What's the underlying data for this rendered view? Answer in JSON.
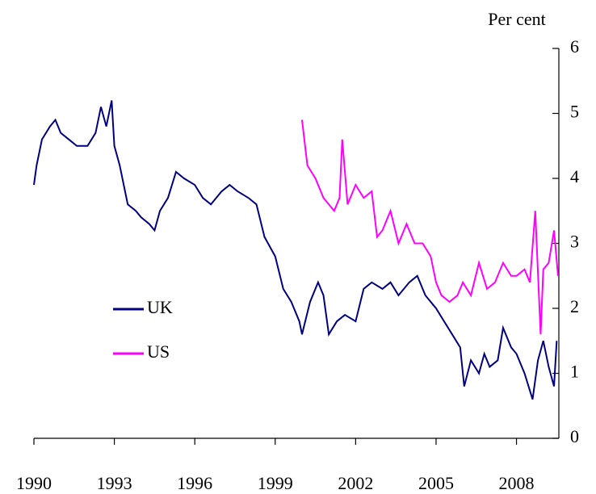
{
  "chart_data": {
    "type": "line",
    "y_label": "Per cent",
    "xlim": [
      1990,
      2009.58
    ],
    "xticks": [
      1990,
      1993,
      1996,
      1999,
      2002,
      2005,
      2008
    ],
    "ylim": [
      0,
      6
    ],
    "yticks": [
      0,
      1,
      2,
      3,
      4,
      5,
      6
    ],
    "y_axis_side": "right",
    "grid": false,
    "legend": "center-left",
    "series": [
      {
        "name": "UK",
        "color": "#000080",
        "x": [
          1990.0,
          1990.1,
          1990.3,
          1990.6,
          1990.8,
          1991.0,
          1991.3,
          1991.6,
          1992.0,
          1992.3,
          1992.5,
          1992.7,
          1992.9,
          1993.0,
          1993.2,
          1993.5,
          1993.8,
          1994.0,
          1994.3,
          1994.5,
          1994.7,
          1995.0,
          1995.3,
          1995.6,
          1996.0,
          1996.3,
          1996.6,
          1997.0,
          1997.3,
          1997.6,
          1998.0,
          1998.3,
          1998.6,
          1999.0,
          1999.3,
          1999.6,
          1999.9,
          2000.0,
          2000.3,
          2000.6,
          2000.8,
          2001.0,
          2001.3,
          2001.6,
          2002.0,
          2002.3,
          2002.6,
          2003.0,
          2003.3,
          2003.6,
          2004.0,
          2004.3,
          2004.6,
          2005.0,
          2005.3,
          2005.6,
          2005.9,
          2006.05,
          2006.3,
          2006.6,
          2006.8,
          2007.0,
          2007.3,
          2007.5,
          2007.8,
          2008.0,
          2008.3,
          2008.6,
          2008.8,
          2009.0,
          2009.2,
          2009.4,
          2009.5
        ],
        "values": [
          3.9,
          4.2,
          4.6,
          4.8,
          4.9,
          4.7,
          4.6,
          4.5,
          4.5,
          4.7,
          5.1,
          4.8,
          5.2,
          4.5,
          4.2,
          3.6,
          3.5,
          3.4,
          3.3,
          3.2,
          3.5,
          3.7,
          4.1,
          4.0,
          3.9,
          3.7,
          3.6,
          3.8,
          3.9,
          3.8,
          3.7,
          3.6,
          3.1,
          2.8,
          2.3,
          2.1,
          1.8,
          1.6,
          2.1,
          2.4,
          2.2,
          1.6,
          1.8,
          1.9,
          1.8,
          2.3,
          2.4,
          2.3,
          2.4,
          2.2,
          2.4,
          2.5,
          2.2,
          2.0,
          1.8,
          1.6,
          1.4,
          0.8,
          1.2,
          1.0,
          1.3,
          1.1,
          1.2,
          1.7,
          1.4,
          1.3,
          1.0,
          0.6,
          1.2,
          1.5,
          1.1,
          0.8,
          1.5
        ]
      },
      {
        "name": "US",
        "color": "#ff00ff",
        "x": [
          2000.0,
          2000.2,
          2000.5,
          2000.8,
          2001.2,
          2001.4,
          2001.5,
          2001.7,
          2002.0,
          2002.3,
          2002.6,
          2002.8,
          2003.0,
          2003.3,
          2003.6,
          2003.9,
          2004.2,
          2004.5,
          2004.8,
          2005.0,
          2005.2,
          2005.5,
          2005.8,
          2006.0,
          2006.3,
          2006.6,
          2006.9,
          2007.2,
          2007.5,
          2007.8,
          2008.0,
          2008.3,
          2008.5,
          2008.7,
          2008.9,
          2009.0,
          2009.2,
          2009.4,
          2009.55
        ],
        "values": [
          4.9,
          4.2,
          4.0,
          3.7,
          3.5,
          3.7,
          4.6,
          3.6,
          3.9,
          3.7,
          3.8,
          3.1,
          3.2,
          3.5,
          3.0,
          3.3,
          3.0,
          3.0,
          2.8,
          2.4,
          2.2,
          2.1,
          2.2,
          2.4,
          2.2,
          2.7,
          2.3,
          2.4,
          2.7,
          2.5,
          2.5,
          2.6,
          2.4,
          3.5,
          1.6,
          2.6,
          2.7,
          3.2,
          2.5
        ]
      }
    ]
  }
}
